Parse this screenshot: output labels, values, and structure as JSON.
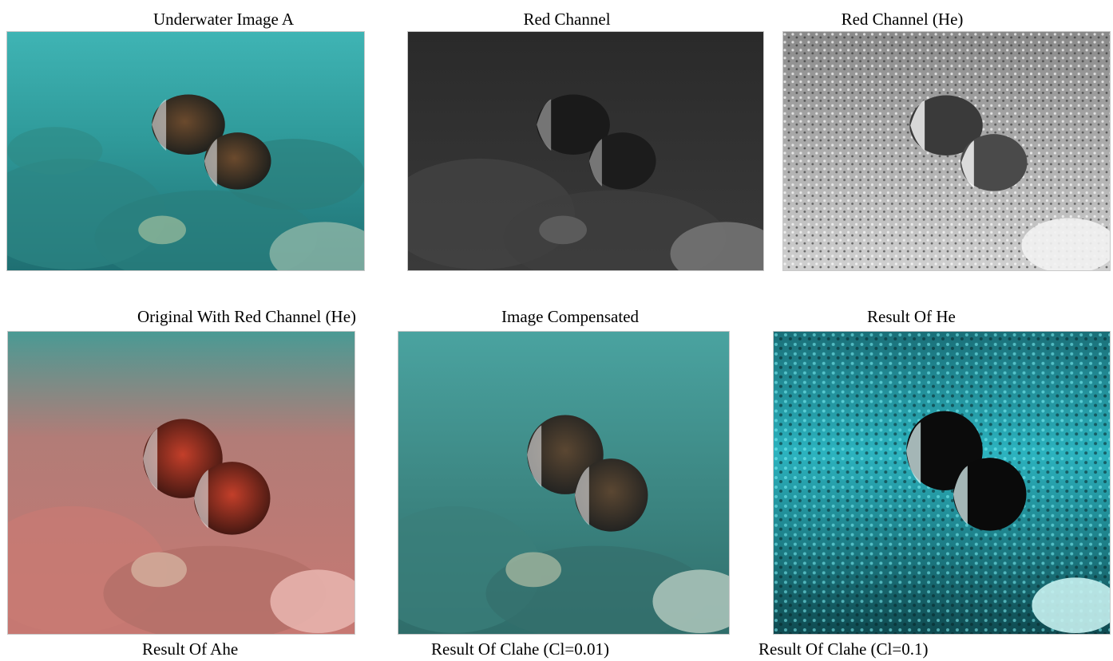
{
  "figure": {
    "row1": {
      "captions": [
        "Underwater Image A",
        "Red Channel",
        "Red Channel (He)"
      ]
    },
    "row2": {
      "captions": [
        "Original With  Red Channel (He)",
        "Image  Compensated",
        "Result Of He"
      ]
    },
    "row3": {
      "captions": [
        "Result Of Ahe",
        "Result Of Clahe (Cl=0.01)",
        "Result Of Clahe (Cl=0.1)"
      ]
    }
  }
}
